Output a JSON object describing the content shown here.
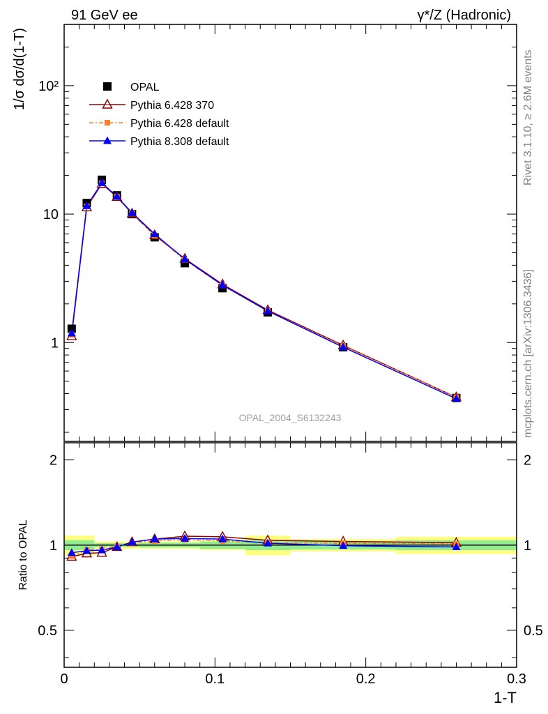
{
  "header": {
    "left": "91 GeV ee",
    "right": "γ*/Z (Hadronic)"
  },
  "side": {
    "rivet": "Rivet 3.1.10, ≥ 2.6M events",
    "mcplots": "mcplots.cern.ch [arXiv:1306.3436]"
  },
  "watermark": "OPAL_2004_S6132243",
  "chart_data": [
    {
      "type": "line",
      "panel": "main",
      "ylabel": "1/σ dσ/d(1-T)",
      "yscale": "log",
      "xlim": [
        0,
        0.3
      ],
      "ylim": [
        0.17,
        300
      ],
      "y_ticklabels": [
        "1",
        "10",
        "10^2"
      ],
      "legend_position": "top-left",
      "x": [
        0.005,
        0.015,
        0.025,
        0.035,
        0.045,
        0.06,
        0.08,
        0.105,
        0.135,
        0.185,
        0.26
      ],
      "series": [
        {
          "name": "OPAL",
          "marker": "square",
          "color": "#000000",
          "values": [
            1.28,
            12.2,
            18.5,
            14.0,
            10.0,
            6.6,
            4.15,
            2.65,
            1.72,
            0.92,
            0.37
          ]
        },
        {
          "name": "Pythia 6.428 370",
          "marker": "open-triangle",
          "color": "#8b0000",
          "values": [
            1.12,
            11.3,
            17.2,
            13.6,
            10.1,
            6.85,
            4.5,
            2.84,
            1.79,
            0.95,
            0.375
          ]
        },
        {
          "name": "Pythia 6.428 default",
          "marker": "filled-square",
          "linestyle": "dash-dot",
          "color": "#ff7f27",
          "values": [
            1.15,
            11.5,
            17.4,
            13.7,
            10.2,
            6.8,
            4.4,
            2.78,
            1.76,
            0.94,
            0.375
          ]
        },
        {
          "name": "Pythia 8.308 default",
          "marker": "filled-triangle",
          "color": "#0000ff",
          "values": [
            1.18,
            11.6,
            17.5,
            13.7,
            10.25,
            7.0,
            4.45,
            2.8,
            1.76,
            0.92,
            0.365
          ]
        }
      ]
    },
    {
      "type": "line",
      "panel": "ratio",
      "xlabel": "1-T",
      "ylabel": "Ratio to OPAL",
      "xlim": [
        0,
        0.3
      ],
      "ylim": [
        0.37,
        2.3
      ],
      "x_ticklabels": [
        "0",
        "0.1",
        "0.2",
        "0.3"
      ],
      "y_ticklabels": [
        "0.5",
        "1",
        "2"
      ],
      "x": [
        0.005,
        0.015,
        0.025,
        0.035,
        0.045,
        0.06,
        0.08,
        0.105,
        0.135,
        0.185,
        0.26
      ],
      "bands": {
        "bin_edges": [
          0,
          0.01,
          0.02,
          0.03,
          0.04,
          0.05,
          0.07,
          0.09,
          0.12,
          0.15,
          0.22,
          0.3
        ],
        "stat_half_width": [
          0.04,
          0.04,
          0.015,
          0.015,
          0.015,
          0.02,
          0.02,
          0.03,
          0.04,
          0.035,
          0.04
        ],
        "total_half_width": [
          0.08,
          0.08,
          0.03,
          0.03,
          0.03,
          0.03,
          0.03,
          0.04,
          0.08,
          0.05,
          0.07
        ]
      },
      "series": [
        {
          "name": "Pythia 6.428 370",
          "color": "#8b0000",
          "values": [
            0.91,
            0.935,
            0.94,
            0.985,
            1.025,
            1.05,
            1.075,
            1.07,
            1.04,
            1.03,
            1.02
          ]
        },
        {
          "name": "Pythia 6.428 default",
          "color": "#ff7f27",
          "values": [
            0.915,
            0.96,
            0.965,
            0.99,
            1.02,
            1.035,
            1.045,
            1.035,
            1.02,
            1.015,
            1.01
          ]
        },
        {
          "name": "Pythia 8.308 default",
          "color": "#0000ff",
          "values": [
            0.94,
            0.955,
            0.96,
            0.985,
            1.025,
            1.05,
            1.055,
            1.05,
            1.015,
            0.995,
            0.985
          ]
        }
      ]
    }
  ]
}
